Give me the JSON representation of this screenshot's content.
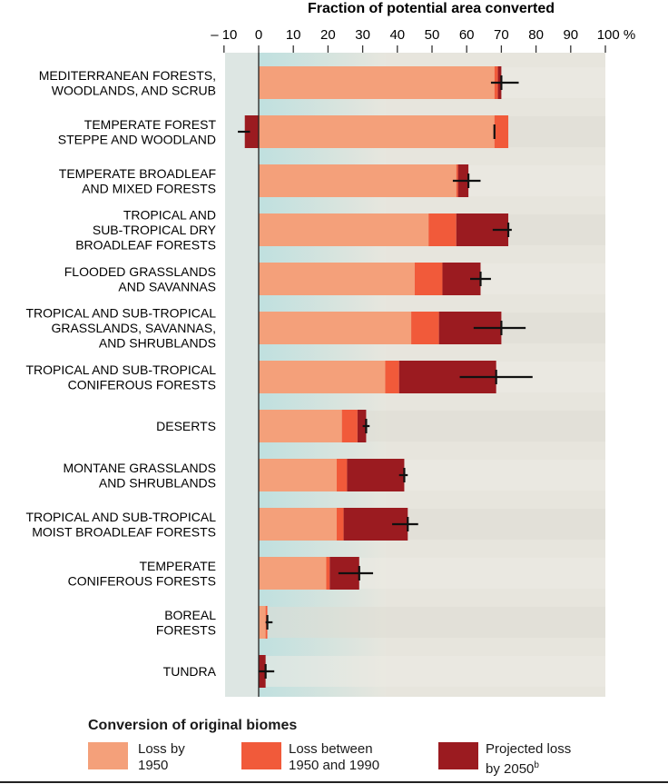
{
  "chart_data": {
    "type": "bar",
    "orientation": "horizontal",
    "stacked": true,
    "title": "Fraction of potential area converted",
    "x_ticks": [
      "– 10",
      "0",
      "10",
      "20",
      "30",
      "40",
      "50",
      "60",
      "70",
      "80",
      "90",
      "100 %"
    ],
    "x_tick_values": [
      -10,
      0,
      10,
      20,
      30,
      40,
      50,
      60,
      70,
      80,
      90,
      100
    ],
    "xlim": [
      -10,
      100
    ],
    "categories": [
      "MEDITERRANEAN FORESTS,\nWOODLANDS, AND SCRUB",
      "TEMPERATE FOREST\nSTEPPE AND WOODLAND",
      "TEMPERATE BROADLEAF\nAND MIXED FORESTS",
      "TROPICAL AND\nSUB-TROPICAL DRY\nBROADLEAF FORESTS",
      "FLOODED GRASSLANDS\nAND SAVANNAS",
      "TROPICAL AND SUB-TROPICAL\nGRASSLANDS, SAVANNAS,\nAND SHRUBLANDS",
      "TROPICAL AND SUB-TROPICAL\nCONIFEROUS FORESTS",
      "DESERTS",
      "MONTANE GRASSLANDS\nAND SHRUBLANDS",
      "TROPICAL AND SUB-TROPICAL\nMOIST BROADLEAF FORESTS",
      "TEMPERATE\nCONIFEROUS FORESTS",
      "BOREAL\nFORESTS",
      "TUNDRA"
    ],
    "series": [
      {
        "name": "Loss by 1950",
        "color": "#f4a07a",
        "values": [
          68,
          68,
          57,
          49,
          45,
          44,
          36.5,
          24,
          22.5,
          22.5,
          19.5,
          2,
          0
        ]
      },
      {
        "name": "Loss between 1950 and 1990",
        "color": "#f15a3a",
        "values": [
          1,
          4,
          0.5,
          8,
          8,
          8,
          4,
          4.5,
          3,
          2,
          1,
          0.5,
          0
        ]
      },
      {
        "name": "Projected loss by 2050",
        "color": "#9b1b20",
        "values": [
          1,
          -4,
          3,
          15,
          11,
          18,
          28,
          2.5,
          16.5,
          18.5,
          8.5,
          0,
          2
        ]
      }
    ],
    "error_bars": [
      {
        "low": 67,
        "high": 75
      },
      {
        "low": -6,
        "high": -2.5
      },
      {
        "low": 56,
        "high": 64
      },
      {
        "low": 67.5,
        "high": 73
      },
      {
        "low": 61,
        "high": 67
      },
      {
        "low": 62,
        "high": 77
      },
      {
        "low": 58,
        "high": 79
      },
      {
        "low": 30,
        "high": 32
      },
      {
        "low": 40.5,
        "high": 43
      },
      {
        "low": 38.5,
        "high": 46
      },
      {
        "low": 23,
        "high": 33
      },
      {
        "low": 2,
        "high": 4
      },
      {
        "low": 0,
        "high": 4.5
      }
    ],
    "legend": {
      "title": "Conversion of original biomes",
      "position": "bottom"
    }
  },
  "legend_labels": {
    "s0": "Loss by\n1950",
    "s1": "Loss between\n1950 and 1990",
    "s2": "Projected loss\nby 2050",
    "s2_superscript": "b"
  },
  "colors": {
    "plot_background": "#e7e5dd",
    "band_light": "#ecebe3",
    "band_dark": "#dedcd3",
    "negative_region": "#dde6e3",
    "teal_gradient_start": "#bfe0df",
    "error_bar": "#111111"
  }
}
